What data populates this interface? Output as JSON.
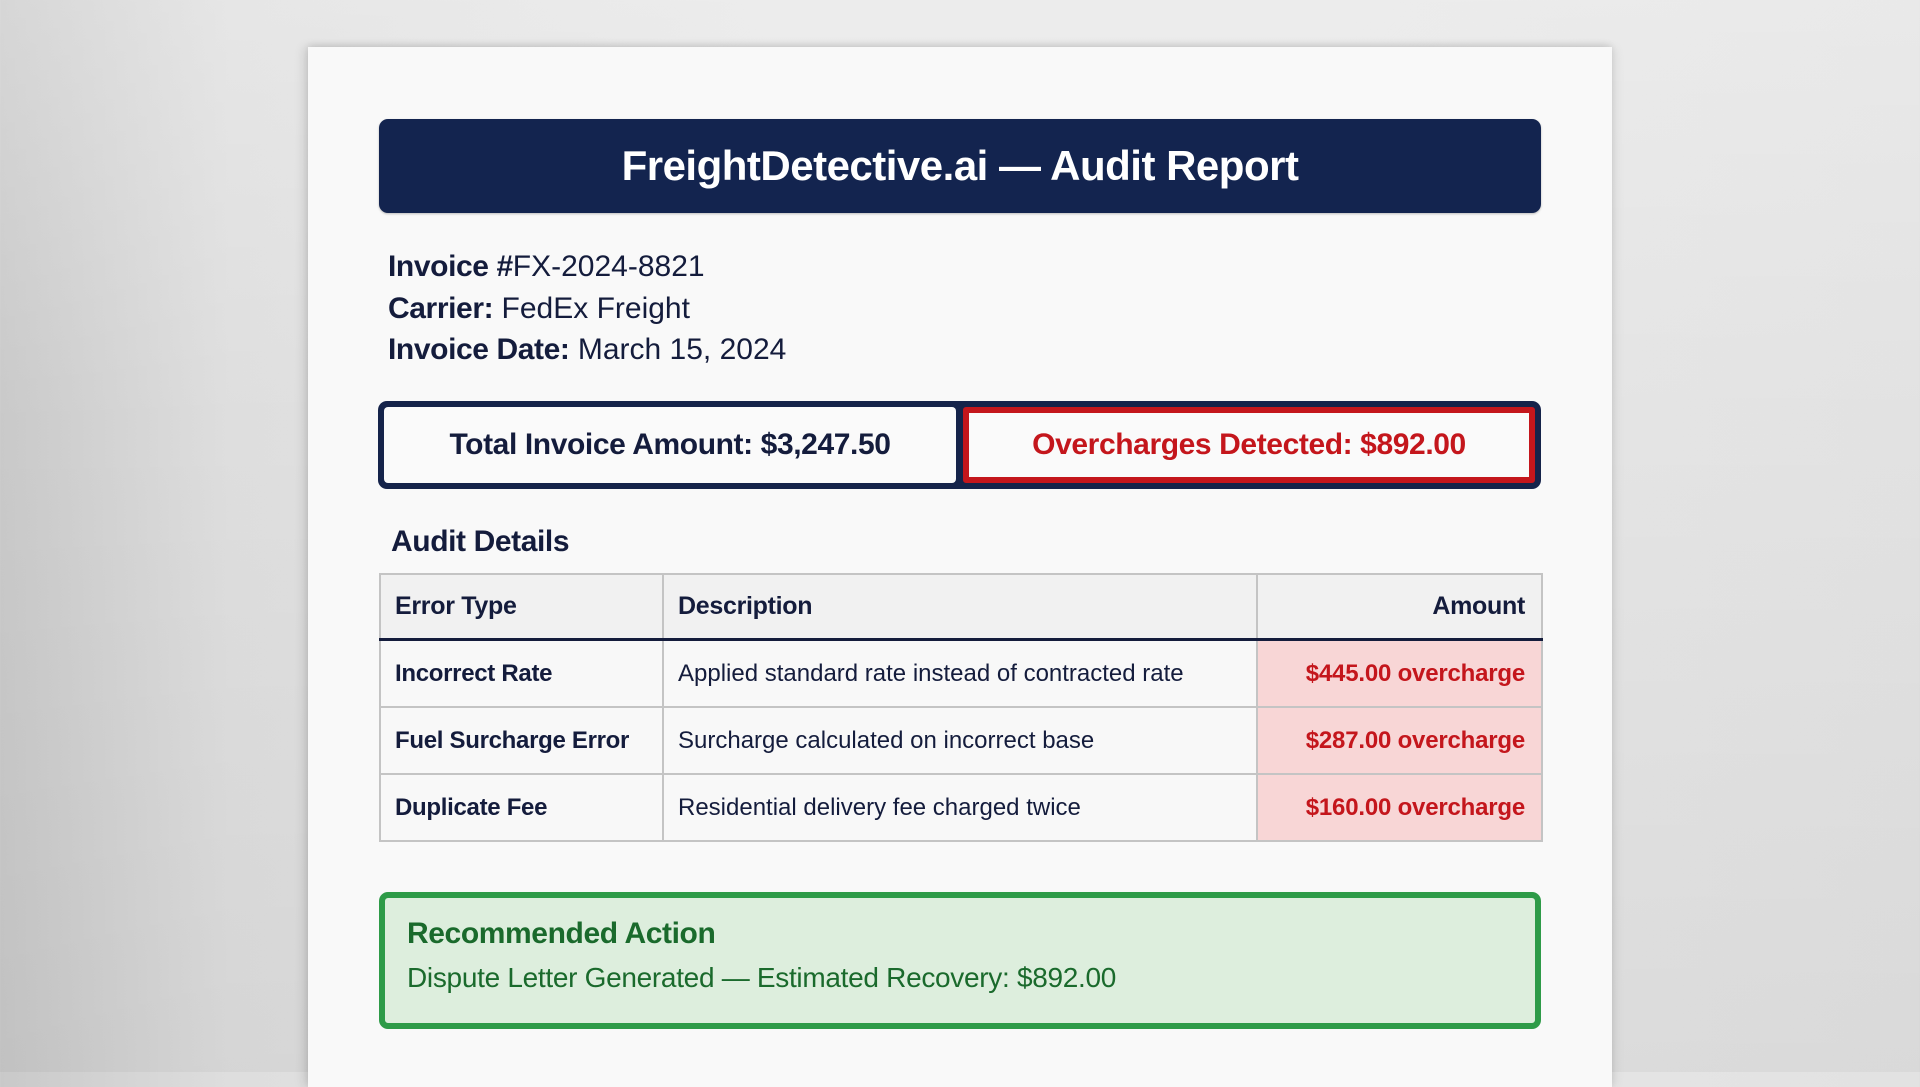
{
  "header": {
    "title": "FreightDetective.ai — Audit Report"
  },
  "invoice": {
    "number_label": "Invoice #",
    "number_value": "FX-2024-8821",
    "carrier_label": "Carrier:",
    "carrier_value": "FedEx Freight",
    "date_label": "Invoice Date:",
    "date_value": "March 15, 2024"
  },
  "summary": {
    "total_label": "Total Invoice Amount: $3,247.50",
    "total_amount": "$3,247.50",
    "overcharges_label": "Overcharges Detected: $892.00",
    "overcharges_amount": "$892.00"
  },
  "audit": {
    "section_title": "Audit Details",
    "columns": [
      "Error Type",
      "Description",
      "Amount"
    ],
    "rows": [
      {
        "type": "Incorrect Rate",
        "description": "Applied standard rate instead of contracted rate",
        "amount": "$445.00 overcharge"
      },
      {
        "type": "Fuel Surcharge Error",
        "description": "Surcharge calculated on incorrect base",
        "amount": "$287.00 overcharge"
      },
      {
        "type": "Duplicate Fee",
        "description": "Residential delivery fee charged twice",
        "amount": "$160.00 overcharge"
      }
    ]
  },
  "recommended_action": {
    "title": "Recommended Action",
    "body": "Dispute Letter Generated — Estimated Recovery: $892.00"
  },
  "colors": {
    "navy": "#13244f",
    "text_dark": "#141c3c",
    "alert_red": "#c4161c",
    "alert_bg": "#f8d6d6",
    "success_green": "#2e9b48",
    "success_bg": "#ddeedd",
    "success_text": "#1a6a2c"
  }
}
